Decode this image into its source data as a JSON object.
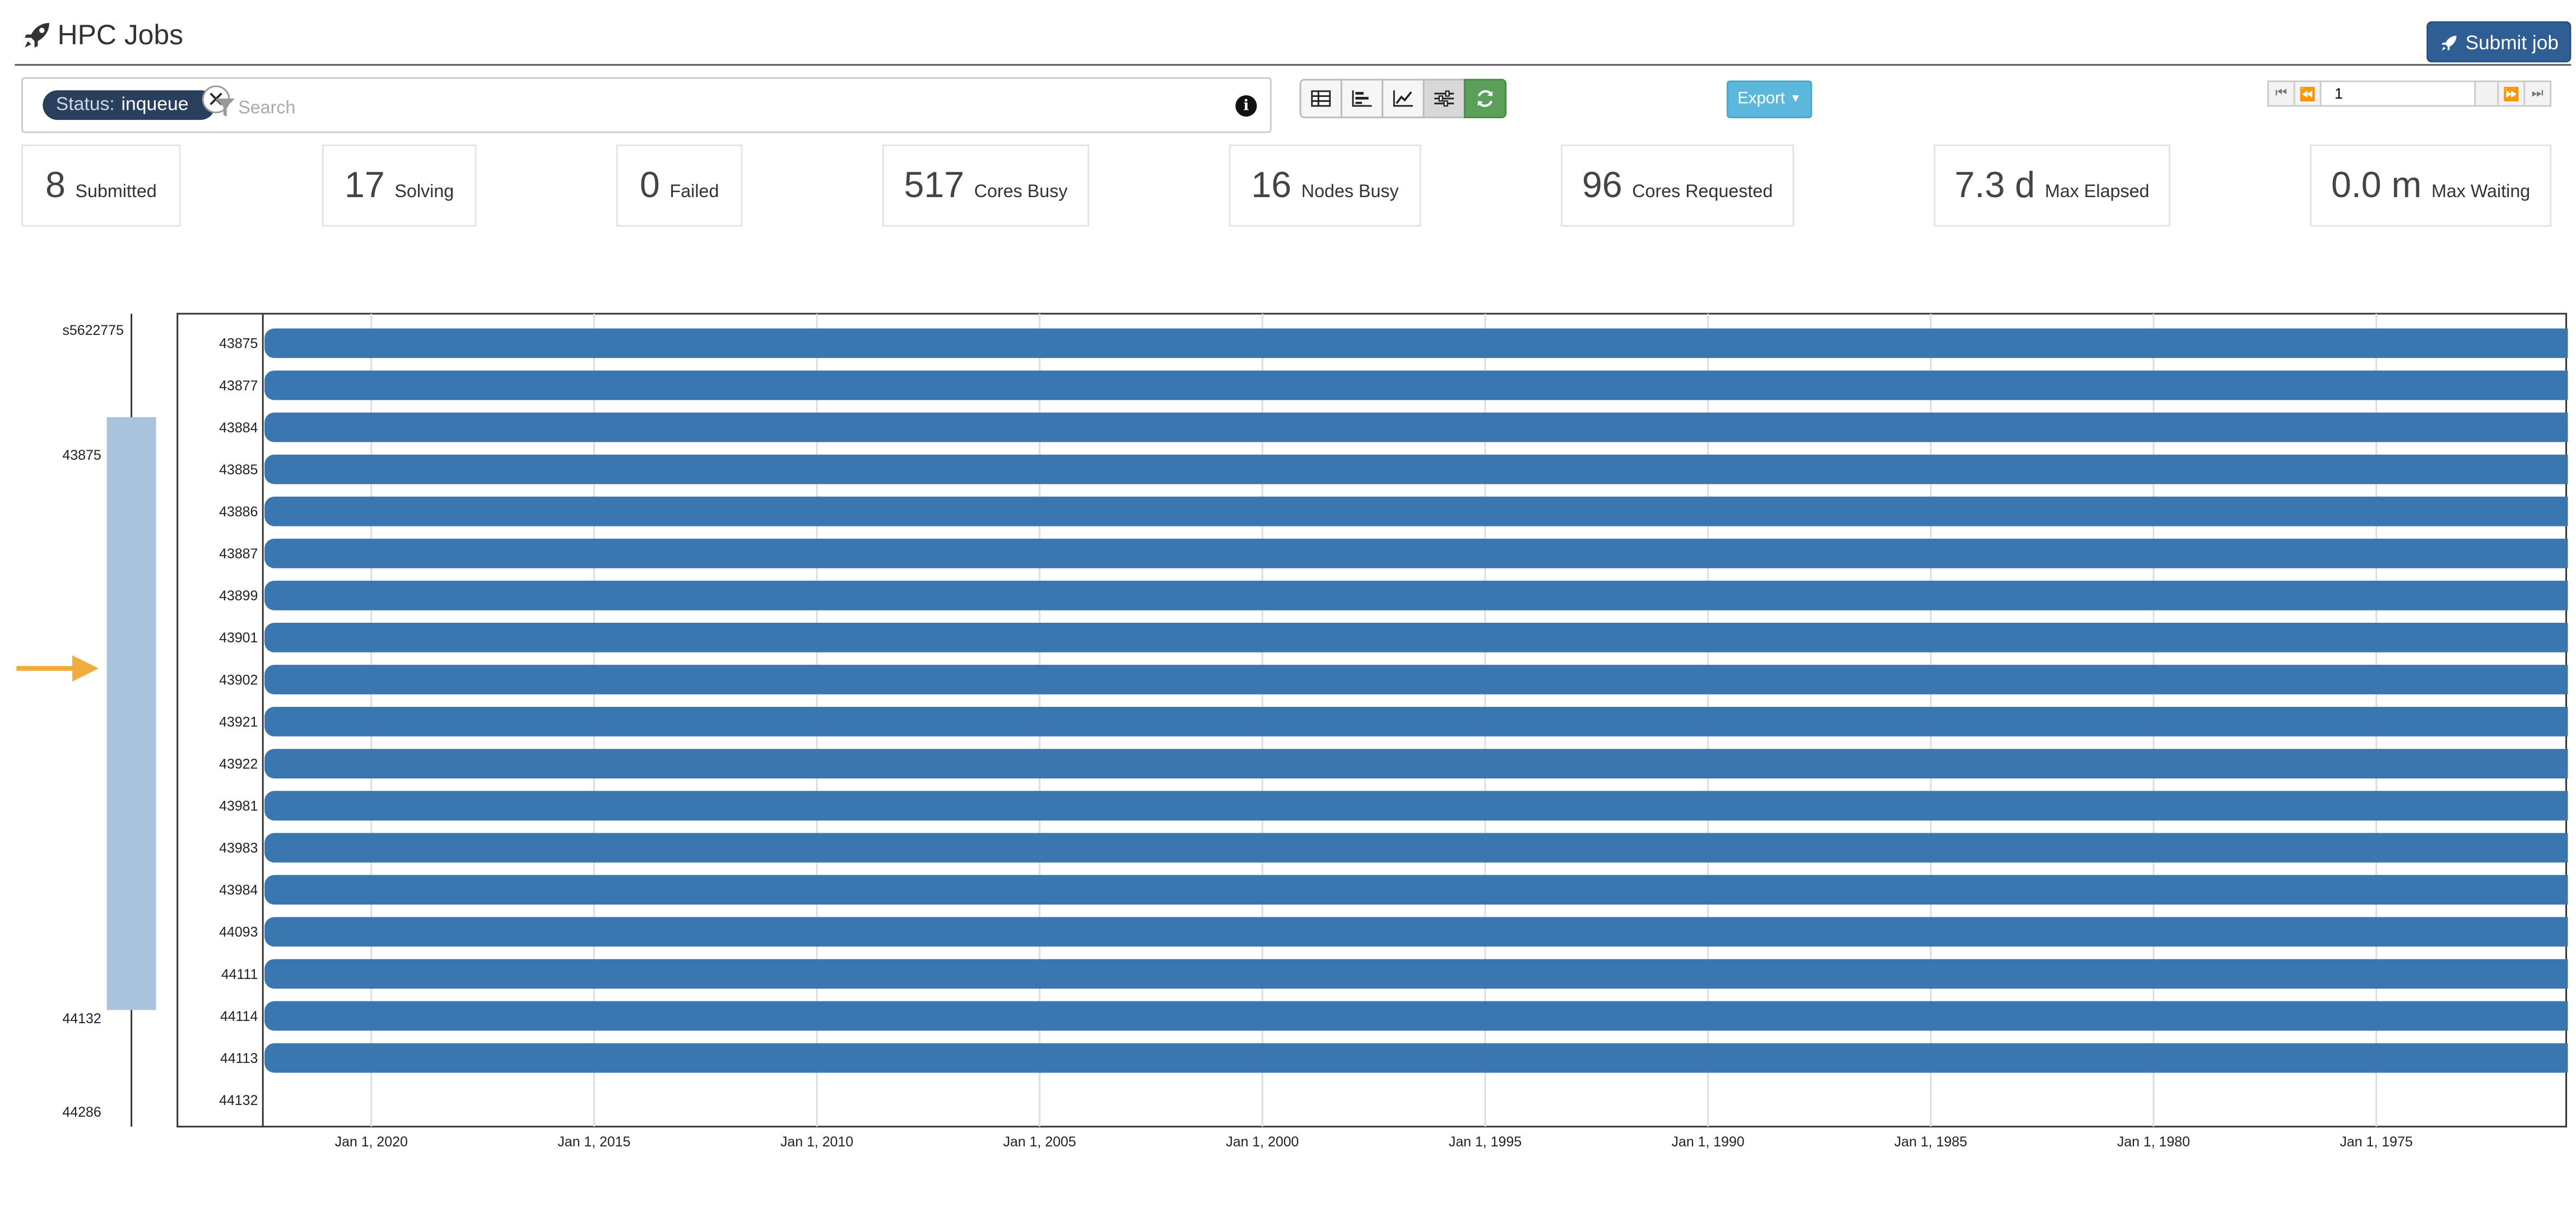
{
  "header": {
    "title": "HPC Jobs",
    "submit_label": "Submit job",
    "brand_color": "#2f5e94"
  },
  "search": {
    "chip_label": "Status:",
    "chip_value": "inqueue",
    "placeholder": "Search",
    "value": ""
  },
  "toolbar": {
    "view_buttons": [
      "table-icon",
      "bar-chart-icon",
      "line-chart-icon",
      "sliders-icon",
      "refresh-icon"
    ],
    "export_label": "Export"
  },
  "pager": {
    "page": "1"
  },
  "stats": [
    {
      "value": "8",
      "label": "Submitted"
    },
    {
      "value": "17",
      "label": "Solving"
    },
    {
      "value": "0",
      "label": "Failed"
    },
    {
      "value": "517",
      "label": "Cores Busy"
    },
    {
      "value": "16",
      "label": "Nodes Busy"
    },
    {
      "value": "96",
      "label": "Cores Requested"
    },
    {
      "value": "7.3 d",
      "label": "Max Elapsed"
    },
    {
      "value": "0.0 m",
      "label": "Max Waiting"
    }
  ],
  "chart_data": {
    "type": "gantt",
    "bar_color": "#3a76af",
    "rows": [
      "43875",
      "43877",
      "43884",
      "43885",
      "43886",
      "43887",
      "43899",
      "43901",
      "43902",
      "43921",
      "43922",
      "43981",
      "43983",
      "43984",
      "44093",
      "44111",
      "44114",
      "44113",
      "44132"
    ],
    "bars_for_rows": 18,
    "x_ticks": [
      "Jan 1, 2020",
      "Jan 1, 2015",
      "Jan 1, 2010",
      "Jan 1, 2005",
      "Jan 1, 2000",
      "Jan 1, 1995",
      "Jan 1, 1990",
      "Jan 1, 1985",
      "Jan 1, 1980",
      "Jan 1, 1975"
    ],
    "overview_labels": [
      "s5622775",
      "43875",
      "44132",
      "44286"
    ],
    "brush_color": "#aac3dc",
    "arrow_color": "#f0ad3c"
  }
}
